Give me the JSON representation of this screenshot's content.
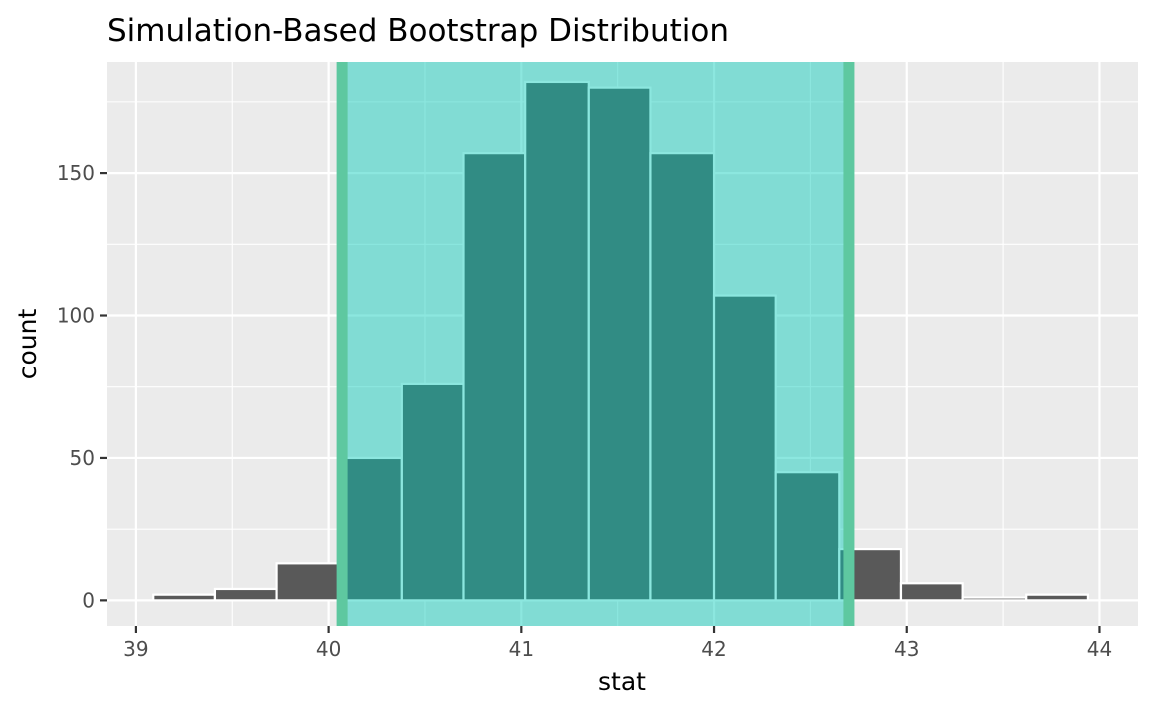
{
  "chart_data": {
    "type": "bar",
    "title": "Simulation-Based Bootstrap Distribution",
    "xlabel": "stat",
    "ylabel": "count",
    "xlim": [
      38.85,
      44.2
    ],
    "ylim": [
      -9,
      189
    ],
    "x_ticks": [
      39,
      40,
      41,
      42,
      43,
      44
    ],
    "y_ticks": [
      0,
      50,
      100,
      150
    ],
    "grid": true,
    "bins": [
      {
        "x0": 39.09,
        "x1": 39.41,
        "count": 2
      },
      {
        "x0": 39.41,
        "x1": 39.73,
        "count": 4
      },
      {
        "x0": 39.73,
        "x1": 40.05,
        "count": 13
      },
      {
        "x0": 40.05,
        "x1": 40.38,
        "count": 50
      },
      {
        "x0": 40.38,
        "x1": 40.7,
        "count": 76
      },
      {
        "x0": 40.7,
        "x1": 41.02,
        "count": 157
      },
      {
        "x0": 41.02,
        "x1": 41.35,
        "count": 182
      },
      {
        "x0": 41.35,
        "x1": 41.67,
        "count": 180
      },
      {
        "x0": 41.67,
        "x1": 42.0,
        "count": 157
      },
      {
        "x0": 42.0,
        "x1": 42.32,
        "count": 107
      },
      {
        "x0": 42.32,
        "x1": 42.65,
        "count": 45
      },
      {
        "x0": 42.65,
        "x1": 42.97,
        "count": 18
      },
      {
        "x0": 42.97,
        "x1": 43.29,
        "count": 6
      },
      {
        "x0": 43.29,
        "x1": 43.62,
        "count": 1
      },
      {
        "x0": 43.62,
        "x1": 43.94,
        "count": 2
      }
    ],
    "shaded_interval": {
      "lower": 40.07,
      "upper": 42.7
    },
    "colors": {
      "panel_background": "#ebebeb",
      "grid": "#ffffff",
      "bar_fill": "#595959",
      "bar_outline": "#ffffff",
      "interval_fill": "#00c9b9",
      "interval_line": "#5ec8a0"
    }
  }
}
